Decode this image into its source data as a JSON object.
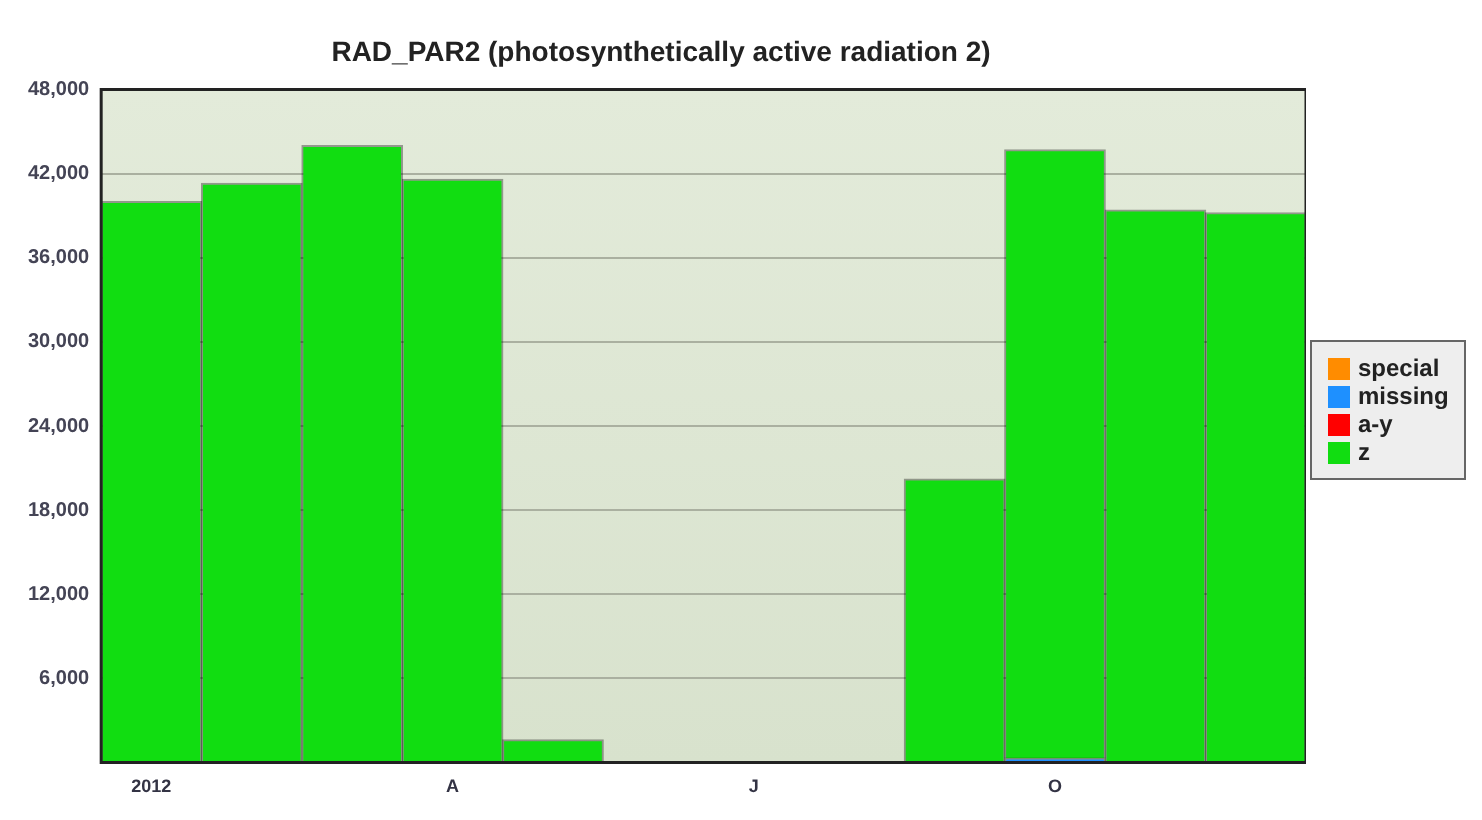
{
  "chart_data": {
    "type": "bar",
    "title": "RAD_PAR2 (photosynthetically active radiation 2)",
    "stacked": true,
    "categories": [
      "2012",
      null,
      null,
      "A",
      null,
      null,
      "J",
      null,
      null,
      "O",
      null,
      null
    ],
    "series": [
      {
        "name": "special",
        "color": "#ff8c00",
        "values": [
          0,
          0,
          0,
          0,
          0,
          0,
          0,
          0,
          0,
          0,
          0,
          0
        ]
      },
      {
        "name": "missing",
        "color": "#1e90ff",
        "values": [
          0,
          0,
          0,
          0,
          0,
          0,
          0,
          0,
          0,
          300,
          0,
          0
        ]
      },
      {
        "name": "a-y",
        "color": "#ff0000",
        "values": [
          0,
          0,
          0,
          0,
          0,
          0,
          0,
          0,
          0,
          0,
          0,
          0
        ]
      },
      {
        "name": "z",
        "color": "#11dd11",
        "values": [
          40000,
          41300,
          44000,
          41600,
          1600,
          0,
          0,
          0,
          20200,
          43400,
          39400,
          39200
        ]
      }
    ],
    "ylim": [
      0,
      48000
    ],
    "yticks": [
      {
        "value": 6000,
        "label": "6,000"
      },
      {
        "value": 12000,
        "label": "12,000"
      },
      {
        "value": 18000,
        "label": "18,000"
      },
      {
        "value": 24000,
        "label": "24,000"
      },
      {
        "value": 30000,
        "label": "30,000"
      },
      {
        "value": 36000,
        "label": "36,000"
      },
      {
        "value": 42000,
        "label": "42,000"
      },
      {
        "value": 48000,
        "label": "48,000"
      }
    ],
    "grid": "y",
    "legend": "right"
  }
}
